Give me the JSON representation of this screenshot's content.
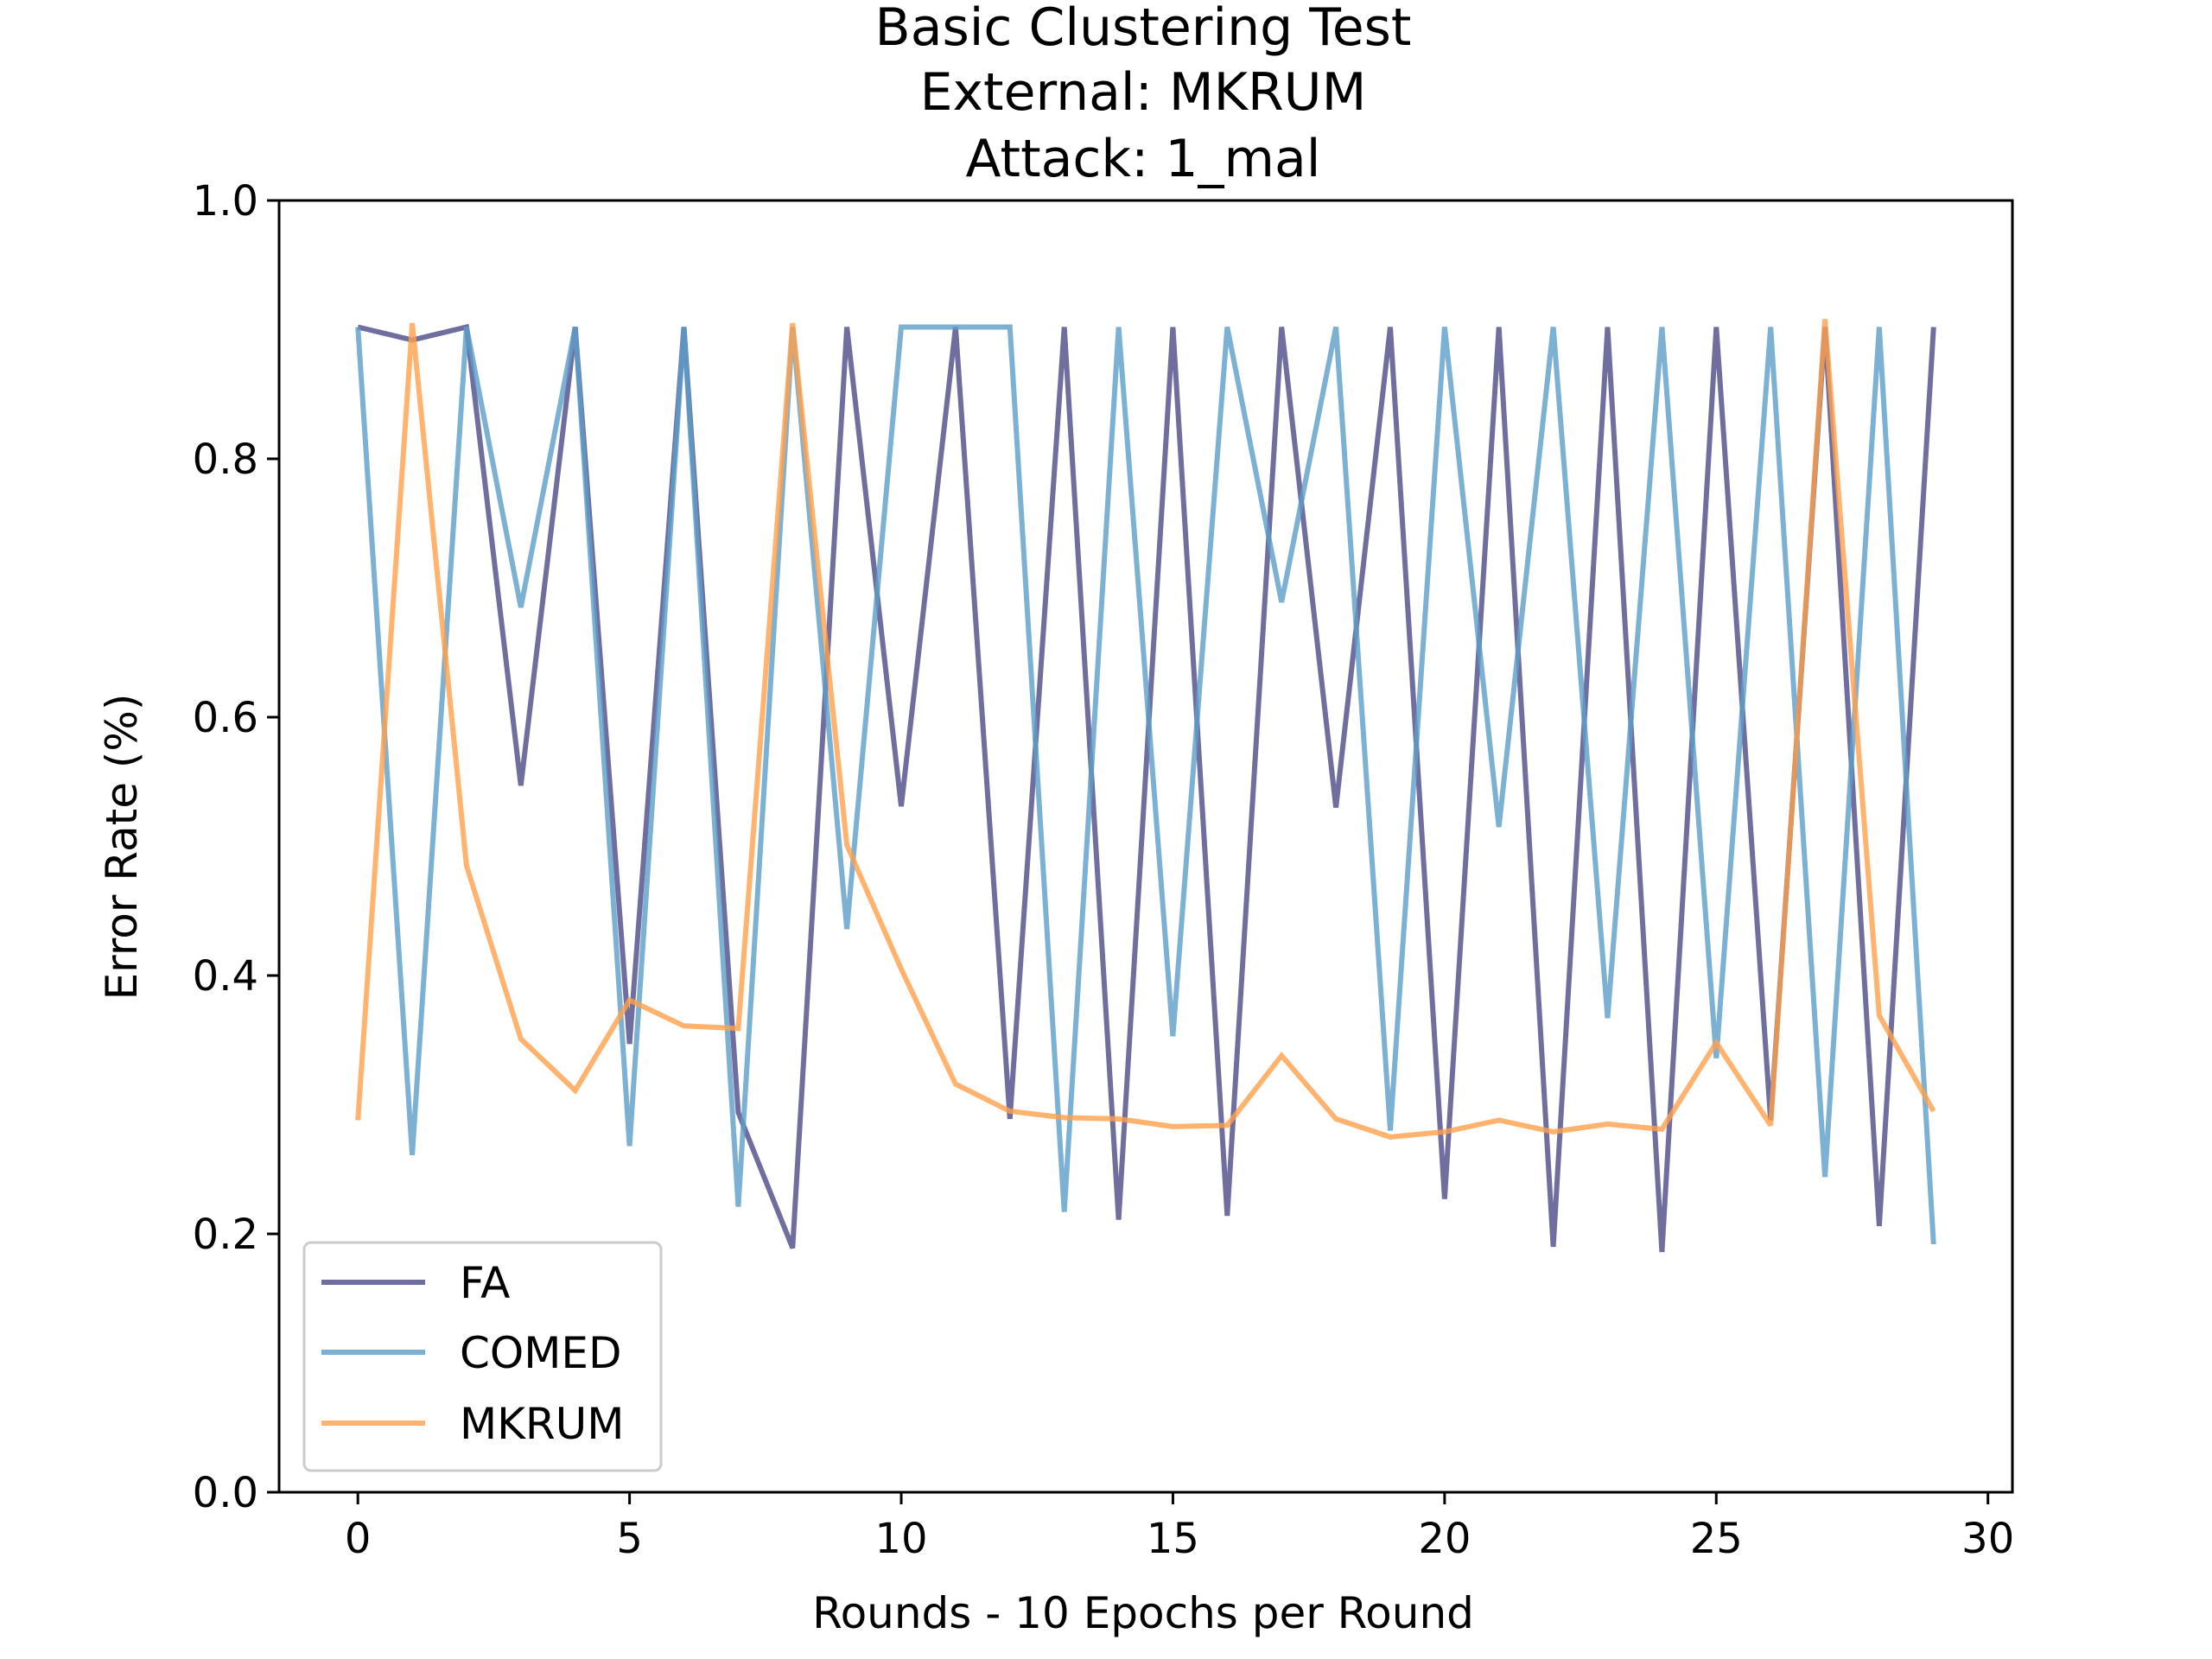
{
  "chart_data": {
    "type": "line",
    "title_lines": [
      "Basic Clustering Test",
      "External: MKRUM",
      "Attack: 1_mal"
    ],
    "xlabel": "Rounds - 10 Epochs per Round",
    "ylabel": "Error Rate (%)",
    "xlim": [
      -1.45,
      30.45
    ],
    "ylim": [
      0.0,
      1.0
    ],
    "xticks": [
      0,
      5,
      10,
      15,
      20,
      25,
      30
    ],
    "yticks": [
      0.0,
      0.2,
      0.4,
      0.6,
      0.8,
      1.0
    ],
    "xtick_labels": [
      "0",
      "5",
      "10",
      "15",
      "20",
      "25",
      "30"
    ],
    "ytick_labels": [
      "0.0",
      "0.2",
      "0.4",
      "0.6",
      "0.8",
      "1.0"
    ],
    "grid": false,
    "legend_position": "lower-left",
    "x": [
      0,
      1,
      2,
      3,
      4,
      5,
      6,
      7,
      8,
      9,
      10,
      11,
      12,
      13,
      14,
      15,
      16,
      17,
      18,
      19,
      20,
      21,
      22,
      23,
      24,
      25,
      26,
      27,
      28,
      29
    ],
    "series": [
      {
        "name": "FA",
        "color": "#4b4a87",
        "values": [
          0.902,
          0.892,
          0.902,
          0.547,
          0.902,
          0.347,
          0.902,
          0.294,
          0.189,
          0.902,
          0.531,
          0.902,
          0.289,
          0.902,
          0.211,
          0.902,
          0.214,
          0.902,
          0.53,
          0.902,
          0.227,
          0.902,
          0.19,
          0.902,
          0.186,
          0.902,
          0.288,
          0.902,
          0.206,
          0.902
        ]
      },
      {
        "name": "COMED",
        "color": "#5c9ec9",
        "values": [
          0.902,
          0.261,
          0.902,
          0.685,
          0.902,
          0.268,
          0.902,
          0.221,
          0.902,
          0.436,
          0.902,
          0.902,
          0.902,
          0.217,
          0.902,
          0.353,
          0.902,
          0.689,
          0.902,
          0.28,
          0.902,
          0.515,
          0.902,
          0.367,
          0.902,
          0.336,
          0.902,
          0.244,
          0.902,
          0.192
        ]
      },
      {
        "name": "MKRUM",
        "color": "#ffa04a",
        "values": [
          0.288,
          0.905,
          0.485,
          0.351,
          0.311,
          0.381,
          0.361,
          0.359,
          0.905,
          0.501,
          0.405,
          0.316,
          0.295,
          0.29,
          0.289,
          0.283,
          0.284,
          0.338,
          0.289,
          0.275,
          0.279,
          0.288,
          0.279,
          0.285,
          0.281,
          0.348,
          0.284,
          0.908,
          0.369,
          0.295
        ]
      }
    ]
  }
}
